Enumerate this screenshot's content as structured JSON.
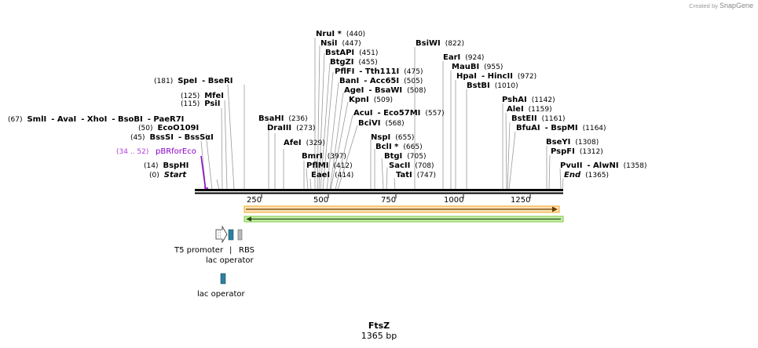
{
  "credit": {
    "prefix": "Created by",
    "brand": "SnapGene"
  },
  "sequence": {
    "name": "FtsZ",
    "length_label": "1365 bp"
  },
  "ruler_ticks": [
    "250",
    "500",
    "750",
    "1000",
    "1250"
  ],
  "sites": [
    {
      "id": "smli",
      "parts": [
        {
          "t": "(67)",
          "c": "pos"
        },
        {
          "t": "SmlI",
          "c": "enz"
        },
        {
          "t": "- AvaI",
          "c": "enz"
        },
        {
          "t": "- XhoI",
          "c": "enz"
        },
        {
          "t": "- BsoBI",
          "c": "enz"
        },
        {
          "t": "- PaeR7I",
          "c": "enz"
        }
      ]
    },
    {
      "id": "spei",
      "parts": [
        {
          "t": "(181)",
          "c": "pos"
        },
        {
          "t": "SpeI",
          "c": "enz"
        },
        {
          "t": "- BseRI",
          "c": "enz"
        }
      ]
    },
    {
      "id": "mfei",
      "parts": [
        {
          "t": "(125)",
          "c": "pos"
        },
        {
          "t": "MfeI",
          "c": "enz"
        }
      ]
    },
    {
      "id": "psii",
      "parts": [
        {
          "t": "(115)",
          "c": "pos"
        },
        {
          "t": "PsiI",
          "c": "enz"
        }
      ]
    },
    {
      "id": "eco",
      "parts": [
        {
          "t": "(50)",
          "c": "pos"
        },
        {
          "t": "EcoO109I",
          "c": "enz"
        }
      ]
    },
    {
      "id": "bsssi",
      "parts": [
        {
          "t": "(45)",
          "c": "pos"
        },
        {
          "t": "BssSI",
          "c": "enz"
        },
        {
          "t": "- BssSαI",
          "c": "enz"
        }
      ]
    },
    {
      "id": "bsphi",
      "parts": [
        {
          "t": "(14)",
          "c": "pos"
        },
        {
          "t": "BspHI",
          "c": "enz"
        }
      ]
    },
    {
      "id": "start",
      "parts": [
        {
          "t": "(0)",
          "c": "pos"
        },
        {
          "t": "Start",
          "c": "enz"
        }
      ]
    },
    {
      "id": "nrui",
      "parts": [
        {
          "t": "NruI *",
          "c": "enz"
        },
        {
          "t": "(440)",
          "c": "pos"
        }
      ]
    },
    {
      "id": "nsii",
      "parts": [
        {
          "t": "NsiI",
          "c": "enz"
        },
        {
          "t": "(447)",
          "c": "pos"
        }
      ]
    },
    {
      "id": "bstapi",
      "parts": [
        {
          "t": "BstAPI",
          "c": "enz"
        },
        {
          "t": "(451)",
          "c": "pos"
        }
      ]
    },
    {
      "id": "btgzi",
      "parts": [
        {
          "t": "BtgZI",
          "c": "enz"
        },
        {
          "t": "(455)",
          "c": "pos"
        }
      ]
    },
    {
      "id": "pflfi",
      "parts": [
        {
          "t": "PflFI",
          "c": "enz"
        },
        {
          "t": "- Tth111I",
          "c": "enz"
        },
        {
          "t": "(475)",
          "c": "pos"
        }
      ]
    },
    {
      "id": "bani",
      "parts": [
        {
          "t": "BanI",
          "c": "enz"
        },
        {
          "t": "- Acc65I",
          "c": "enz"
        },
        {
          "t": "(505)",
          "c": "pos"
        }
      ]
    },
    {
      "id": "agei",
      "parts": [
        {
          "t": "AgeI",
          "c": "enz"
        },
        {
          "t": "- BsaWI",
          "c": "enz"
        },
        {
          "t": "(508)",
          "c": "pos"
        }
      ]
    },
    {
      "id": "kpni",
      "parts": [
        {
          "t": "KpnI",
          "c": "enz"
        },
        {
          "t": "(509)",
          "c": "pos"
        }
      ]
    },
    {
      "id": "bsahi",
      "parts": [
        {
          "t": "BsaHI",
          "c": "enz"
        },
        {
          "t": "(236)",
          "c": "pos"
        }
      ]
    },
    {
      "id": "draiii",
      "parts": [
        {
          "t": "DraIII",
          "c": "enz"
        },
        {
          "t": "(273)",
          "c": "pos"
        }
      ]
    },
    {
      "id": "afei",
      "parts": [
        {
          "t": "AfeI",
          "c": "enz"
        },
        {
          "t": "(329)",
          "c": "pos"
        }
      ]
    },
    {
      "id": "bmri",
      "parts": [
        {
          "t": "BmrI",
          "c": "enz"
        },
        {
          "t": "(397)",
          "c": "pos"
        }
      ]
    },
    {
      "id": "pflmi",
      "parts": [
        {
          "t": "PflMI",
          "c": "enz"
        },
        {
          "t": "(412)",
          "c": "pos"
        }
      ]
    },
    {
      "id": "eaei",
      "parts": [
        {
          "t": "EaeI",
          "c": "enz"
        },
        {
          "t": "(414)",
          "c": "pos"
        }
      ]
    },
    {
      "id": "bsiwi",
      "parts": [
        {
          "t": "BsiWI",
          "c": "enz"
        },
        {
          "t": "(822)",
          "c": "pos"
        }
      ]
    },
    {
      "id": "acui",
      "parts": [
        {
          "t": "AcuI",
          "c": "enz"
        },
        {
          "t": "- Eco57MI",
          "c": "enz"
        },
        {
          "t": "(557)",
          "c": "pos"
        }
      ]
    },
    {
      "id": "bcivi",
      "parts": [
        {
          "t": "BciVI",
          "c": "enz"
        },
        {
          "t": "(568)",
          "c": "pos"
        }
      ]
    },
    {
      "id": "nspi",
      "parts": [
        {
          "t": "NspI",
          "c": "enz"
        },
        {
          "t": "(655)",
          "c": "pos"
        }
      ]
    },
    {
      "id": "bcli",
      "parts": [
        {
          "t": "BclI *",
          "c": "enz"
        },
        {
          "t": "(665)",
          "c": "pos"
        }
      ]
    },
    {
      "id": "btgi",
      "parts": [
        {
          "t": "BtgI",
          "c": "enz"
        },
        {
          "t": "(705)",
          "c": "pos"
        }
      ]
    },
    {
      "id": "sacii",
      "parts": [
        {
          "t": "SacII",
          "c": "enz"
        },
        {
          "t": "(708)",
          "c": "pos"
        }
      ]
    },
    {
      "id": "tati",
      "parts": [
        {
          "t": "TatI",
          "c": "enz"
        },
        {
          "t": "(747)",
          "c": "pos"
        }
      ]
    },
    {
      "id": "eari",
      "parts": [
        {
          "t": "EarI",
          "c": "enz"
        },
        {
          "t": "(924)",
          "c": "pos"
        }
      ]
    },
    {
      "id": "maubi",
      "parts": [
        {
          "t": "MauBI",
          "c": "enz"
        },
        {
          "t": "(955)",
          "c": "pos"
        }
      ]
    },
    {
      "id": "hpai",
      "parts": [
        {
          "t": "HpaI",
          "c": "enz"
        },
        {
          "t": "- HincII",
          "c": "enz"
        },
        {
          "t": "(972)",
          "c": "pos"
        }
      ]
    },
    {
      "id": "bstbi",
      "parts": [
        {
          "t": "BstBI",
          "c": "enz"
        },
        {
          "t": "(1010)",
          "c": "pos"
        }
      ]
    },
    {
      "id": "pshai",
      "parts": [
        {
          "t": "PshAI",
          "c": "enz"
        },
        {
          "t": "(1142)",
          "c": "pos"
        }
      ]
    },
    {
      "id": "alei",
      "parts": [
        {
          "t": "AleI",
          "c": "enz"
        },
        {
          "t": "(1159)",
          "c": "pos"
        }
      ]
    },
    {
      "id": "bsteii",
      "parts": [
        {
          "t": "BstEII",
          "c": "enz"
        },
        {
          "t": "(1161)",
          "c": "pos"
        }
      ]
    },
    {
      "id": "bfuai",
      "parts": [
        {
          "t": "BfuAI",
          "c": "enz"
        },
        {
          "t": "- BspMI",
          "c": "enz"
        },
        {
          "t": "(1164)",
          "c": "pos"
        }
      ]
    },
    {
      "id": "bseyi",
      "parts": [
        {
          "t": "BseYI",
          "c": "enz"
        },
        {
          "t": "(1308)",
          "c": "pos"
        }
      ]
    },
    {
      "id": "pspfi",
      "parts": [
        {
          "t": "PspFI",
          "c": "enz"
        },
        {
          "t": "(1312)",
          "c": "pos"
        }
      ]
    },
    {
      "id": "pvuii",
      "parts": [
        {
          "t": "PvuII",
          "c": "enz"
        },
        {
          "t": "- AlwNI",
          "c": "enz"
        },
        {
          "t": "(1358)",
          "c": "pos"
        }
      ]
    },
    {
      "id": "end",
      "parts": [
        {
          "t": "End",
          "c": "enz"
        },
        {
          "t": "(1365)",
          "c": "pos"
        }
      ]
    }
  ],
  "primer": {
    "range": "(34 .. 52)",
    "name": "pBRforEco",
    "color": "#8b00c9"
  },
  "features": {
    "t5_promoter": "T5 promoter",
    "rbs": "RBS",
    "lac_operator_1": "lac operator",
    "lac_operator_2": "lac operator",
    "divider": "|"
  },
  "colors": {
    "orange_arrow": "#f6a623",
    "green_arrow": "#7ac943",
    "operator": "#2f7f9f"
  }
}
